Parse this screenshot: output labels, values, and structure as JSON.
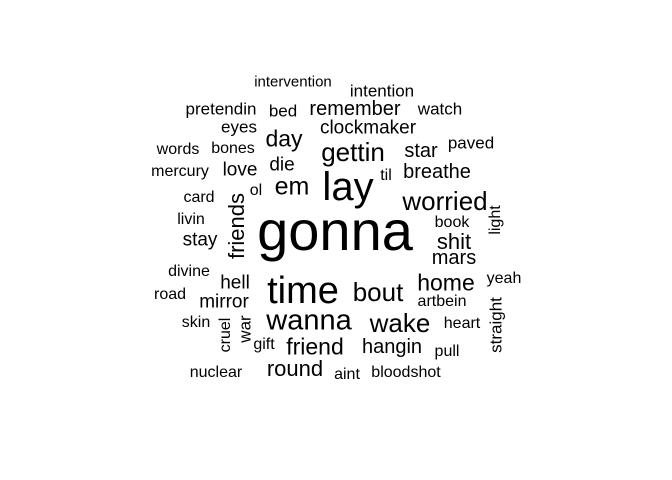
{
  "words": [
    {
      "text": "gonna"
    },
    {
      "text": "lay"
    },
    {
      "text": "time"
    },
    {
      "text": "wanna"
    },
    {
      "text": "bout"
    },
    {
      "text": "gettin"
    },
    {
      "text": "worried"
    },
    {
      "text": "wake"
    },
    {
      "text": "em"
    },
    {
      "text": "home"
    },
    {
      "text": "friend"
    },
    {
      "text": "hangin"
    },
    {
      "text": "day"
    },
    {
      "text": "round"
    },
    {
      "text": "shit"
    },
    {
      "text": "mars"
    },
    {
      "text": "breathe"
    },
    {
      "text": "star"
    },
    {
      "text": "clockmaker"
    },
    {
      "text": "remember"
    },
    {
      "text": "watch"
    },
    {
      "text": "friends"
    },
    {
      "text": "mirror"
    },
    {
      "text": "stay"
    },
    {
      "text": "hell"
    },
    {
      "text": "die"
    },
    {
      "text": "love"
    },
    {
      "text": "intervention"
    },
    {
      "text": "intention"
    },
    {
      "text": "pretendin"
    },
    {
      "text": "bed"
    },
    {
      "text": "eyes"
    },
    {
      "text": "words"
    },
    {
      "text": "bones"
    },
    {
      "text": "paved"
    },
    {
      "text": "mercury"
    },
    {
      "text": "ol"
    },
    {
      "text": "til"
    },
    {
      "text": "card"
    },
    {
      "text": "livin"
    },
    {
      "text": "book"
    },
    {
      "text": "light"
    },
    {
      "text": "divine"
    },
    {
      "text": "yeah"
    },
    {
      "text": "road"
    },
    {
      "text": "artbein"
    },
    {
      "text": "skin"
    },
    {
      "text": "heart"
    },
    {
      "text": "war"
    },
    {
      "text": "cruel"
    },
    {
      "text": "gift"
    },
    {
      "text": "pull"
    },
    {
      "text": "straight"
    },
    {
      "text": "nuclear"
    },
    {
      "text": "aint"
    },
    {
      "text": "bloodshot"
    }
  ]
}
